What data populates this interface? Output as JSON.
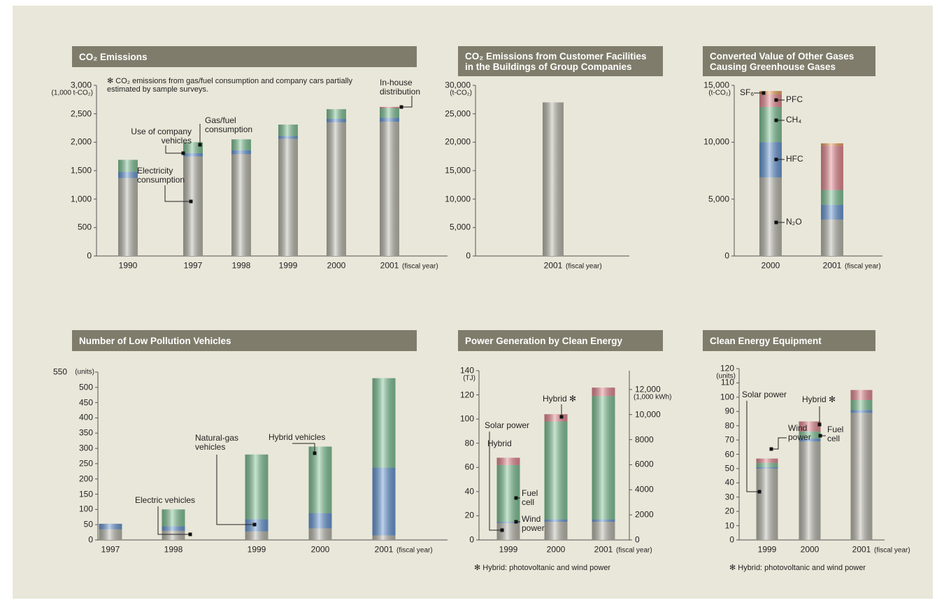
{
  "chart_data": [
    {
      "type": "bar",
      "stacked": true,
      "title": "CO₂ Emissions",
      "note": "✻ CO₂ emissions from gas/fuel consumption and company cars partially estimated by sample surveys.",
      "y_unit": "(1,000 t-CO₂)",
      "x_label": "(fiscal year)",
      "categories": [
        "1990",
        "1997",
        "1998",
        "1999",
        "2000",
        "2001"
      ],
      "series": [
        {
          "name": "Electricity consumption",
          "color": "#bdbcb1",
          "values": [
            1370,
            1750,
            1790,
            2060,
            2350,
            2360
          ]
        },
        {
          "name": "Use of company vehicles",
          "color": "#6b9bd8",
          "values": [
            110,
            60,
            70,
            50,
            60,
            70
          ]
        },
        {
          "name": "Gas/fuel consumption",
          "color": "#84c79a",
          "values": [
            210,
            190,
            190,
            200,
            170,
            170
          ]
        },
        {
          "name": "In-house distribution",
          "color": "#e88c94",
          "values": [
            0,
            0,
            0,
            0,
            0,
            20
          ]
        }
      ],
      "ylim": [
        0,
        3000
      ],
      "yticks": [
        0,
        500,
        {
          "value": 1000,
          "label": "1,000"
        },
        {
          "value": 1500,
          "label": "1,500"
        },
        {
          "value": 2000,
          "label": "2,000"
        },
        {
          "value": 2500,
          "label": "2,500"
        },
        {
          "value": 3000,
          "label": "3,000"
        }
      ]
    },
    {
      "type": "bar",
      "stacked": true,
      "title": "CO₂ Emissions from Customer Facilities in the Buildings of Group Companies",
      "y_unit": "(t-CO₂)",
      "x_label": "(fiscal year)",
      "categories": [
        "2001"
      ],
      "series": [
        {
          "color": "#bdbcb1",
          "values": [
            27000
          ]
        }
      ],
      "ylim": [
        0,
        30000
      ],
      "yticks": [
        0,
        {
          "value": 5000,
          "label": "5,000"
        },
        {
          "value": 10000,
          "label": "10,000"
        },
        {
          "value": 15000,
          "label": "15,000"
        },
        {
          "value": 20000,
          "label": "20,000"
        },
        {
          "value": 25000,
          "label": "25,000"
        },
        {
          "value": 30000,
          "label": "30,000"
        }
      ]
    },
    {
      "type": "bar",
      "stacked": true,
      "title": "Converted Value of Other Gases Causing Greenhouse Gases",
      "y_unit": "(t-CO₂)",
      "x_label": "(fiscal year)",
      "categories": [
        "2000",
        "2001"
      ],
      "series": [
        {
          "name": "N₂O",
          "color": "#bdbcb1",
          "values": [
            6900,
            3200
          ]
        },
        {
          "name": "HFC",
          "color": "#6b9bd8",
          "values": [
            3100,
            1300
          ]
        },
        {
          "name": "CH₄",
          "color": "#84c79a",
          "values": [
            3100,
            1300
          ]
        },
        {
          "name": "PFC",
          "color": "#e88c94",
          "values": [
            1100,
            3900
          ]
        },
        {
          "name": "SF₆",
          "color": "#f0a55e",
          "values": [
            300,
            200
          ]
        }
      ],
      "ylim": [
        0,
        15000
      ],
      "yticks": [
        0,
        {
          "value": 5000,
          "label": "5,000"
        },
        {
          "value": 10000,
          "label": "10,000"
        },
        {
          "value": 15000,
          "label": "15,000"
        }
      ]
    },
    {
      "type": "bar",
      "stacked": true,
      "title": "Number of Low Pollution Vehicles",
      "y_unit": "(units)",
      "x_label": "(fiscal year)",
      "categories": [
        "1997",
        "1998",
        "1999",
        "2000",
        "2001"
      ],
      "series": [
        {
          "name": "Electric vehicles",
          "color": "#bdbcb1",
          "values": [
            35,
            30,
            28,
            38,
            15
          ]
        },
        {
          "name": "Natural-gas vehicles",
          "color": "#6b9bd8",
          "values": [
            18,
            15,
            40,
            50,
            222
          ]
        },
        {
          "name": "Hybrid vehicles",
          "color": "#84c79a",
          "values": [
            0,
            55,
            212,
            218,
            293
          ]
        }
      ],
      "ylim": [
        0,
        550
      ],
      "yticks": [
        0,
        50,
        100,
        150,
        200,
        250,
        300,
        350,
        400,
        450,
        500,
        550
      ]
    },
    {
      "type": "bar",
      "stacked": true,
      "title": "Power Generation by Clean Energy",
      "y_unit": "(TJ)",
      "y2_unit": "(1,000 kWh)",
      "x_label": "(fiscal year)",
      "note": "✻ Hybrid: photovoltanic and wind power",
      "annotations": [
        "Hybrid"
      ],
      "categories": [
        "1999",
        "2000",
        "2001"
      ],
      "series": [
        {
          "name": "Solar power",
          "color": "#bdbcb1",
          "values": [
            14,
            15,
            15
          ]
        },
        {
          "name": "Wind power",
          "color": "#6b9bd8",
          "values": [
            1,
            2,
            2
          ]
        },
        {
          "name": "Fuel cell",
          "color": "#84c79a",
          "values": [
            47,
            81,
            102
          ]
        },
        {
          "name": "Hybrid ✻",
          "color": "#e88c94",
          "values": [
            6,
            6,
            7
          ]
        }
      ],
      "ylim": [
        0,
        140
      ],
      "yticks": [
        0,
        20,
        40,
        60,
        80,
        100,
        120,
        140
      ],
      "y2lim": [
        0,
        13500
      ],
      "y2ticks": [
        0,
        2000,
        4000,
        6000,
        8000,
        {
          "value": 10000,
          "label": "10,000"
        },
        {
          "value": 12000,
          "label": "12,000"
        }
      ]
    },
    {
      "type": "bar",
      "stacked": true,
      "title": "Clean Energy Equipment",
      "y_unit": "(units)",
      "x_label": "(fiscal year)",
      "note": "✻ Hybrid: photovoltanic and wind power",
      "categories": [
        "1999",
        "2000",
        "2001"
      ],
      "series": [
        {
          "name": "Solar power",
          "color": "#bdbcb1",
          "values": [
            50,
            69,
            89
          ]
        },
        {
          "name": "Wind power",
          "color": "#6b9bd8",
          "values": [
            1,
            2,
            2
          ]
        },
        {
          "name": "Fuel cell",
          "color": "#84c79a",
          "values": [
            3,
            5,
            7
          ]
        },
        {
          "name": "Hybrid ✻",
          "color": "#e88c94",
          "values": [
            3,
            7,
            7
          ]
        }
      ],
      "ylim": [
        0,
        120
      ],
      "yticks": [
        0,
        10,
        20,
        30,
        40,
        50,
        60,
        70,
        80,
        90,
        100,
        110,
        120
      ]
    }
  ]
}
